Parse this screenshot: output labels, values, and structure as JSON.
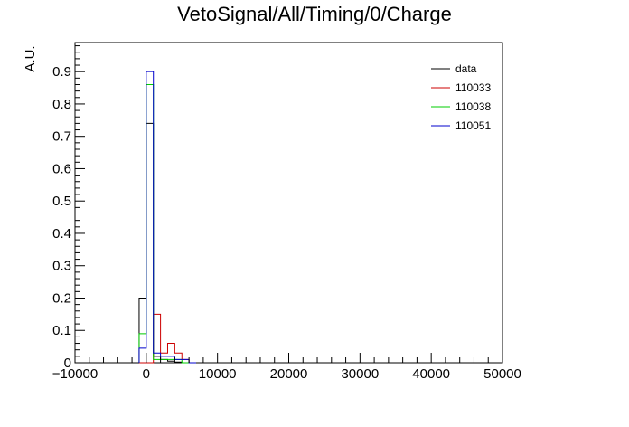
{
  "chart_data": {
    "type": "histogram",
    "title": "VetoSignal/All/Timing/0/Charge",
    "xlabel": "",
    "ylabel": "A.U.",
    "xlim": [
      -10000,
      50000
    ],
    "ylim": [
      0,
      0.99
    ],
    "xticks": [
      -10000,
      0,
      10000,
      20000,
      30000,
      40000,
      50000
    ],
    "xtick_labels": [
      "−10000",
      "0",
      "10000",
      "20000",
      "30000",
      "40000",
      "50000"
    ],
    "yticks": [
      0,
      0.1,
      0.2,
      0.3,
      0.4,
      0.5,
      0.6,
      0.7,
      0.8,
      0.9
    ],
    "ytick_labels": [
      "0",
      "0.1",
      "0.2",
      "0.3",
      "0.4",
      "0.5",
      "0.6",
      "0.7",
      "0.8",
      "0.9"
    ],
    "bin_width": 1000,
    "bins_start": -1000,
    "legend_position": "top-right",
    "series": [
      {
        "name": "data",
        "color": "#000000",
        "values": [
          0.2,
          0.74,
          0.02,
          0.01,
          0.005,
          0.002,
          0.0,
          0.0
        ]
      },
      {
        "name": "110033",
        "color": "#cc0000",
        "values": [
          0.0,
          0.0,
          0.15,
          0.03,
          0.06,
          0.03,
          0.01,
          0.0
        ]
      },
      {
        "name": "110038",
        "color": "#00cc00",
        "values": [
          0.09,
          0.86,
          0.01,
          0.01,
          0.01,
          0.01,
          0.0,
          0.0
        ]
      },
      {
        "name": "110051",
        "color": "#0000cc",
        "values": [
          0.045,
          0.9,
          0.03,
          0.02,
          0.02,
          0.01,
          0.01,
          0.0
        ]
      }
    ]
  }
}
